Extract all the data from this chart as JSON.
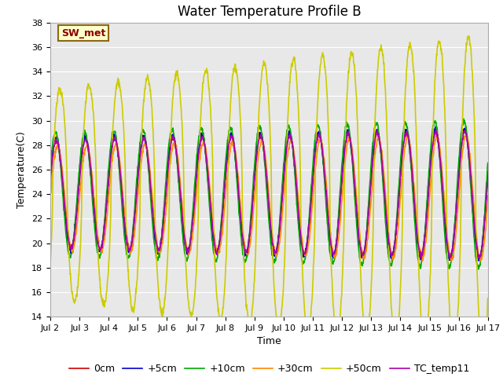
{
  "title": "Water Temperature Profile B",
  "xlabel": "Time",
  "ylabel": "Temperature(C)",
  "ylim": [
    14,
    38
  ],
  "yticks": [
    14,
    16,
    18,
    20,
    22,
    24,
    26,
    28,
    30,
    32,
    34,
    36,
    38
  ],
  "series_colors": {
    "0cm": "#cc0000",
    "+5cm": "#0000cc",
    "+10cm": "#00aa00",
    "+30cm": "#ff8800",
    "+50cm": "#cccc00",
    "TC_temp11": "#aa00aa"
  },
  "series_linewidth": 1.2,
  "legend_labels": [
    "0cm",
    "+5cm",
    "+10cm",
    "+30cm",
    "+50cm",
    "TC_temp11"
  ],
  "annotation_text": "SW_met",
  "annotation_color": "#8b0000",
  "annotation_bg": "#ffffcc",
  "annotation_border": "#8b6914",
  "x_tick_labels": [
    "Jul 2",
    "Jul 3",
    "Jul 4",
    "Jul 5",
    "Jul 6",
    "Jul 7",
    "Jul 8",
    "Jul 9",
    "Jul 10",
    "Jul 11",
    "Jul 12",
    "Jul 13",
    "Jul 14",
    "Jul 15",
    "Jul 16",
    "Jul 17"
  ],
  "background_color": "#e8e8e8",
  "grid_color": "#ffffff",
  "figure_bg": "#ffffff"
}
